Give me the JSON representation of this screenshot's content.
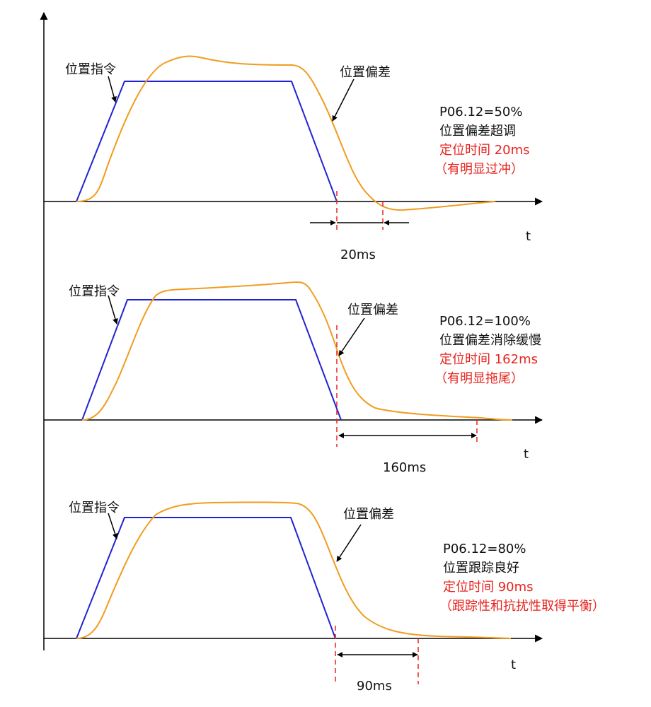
{
  "colors": {
    "command": "#2323d2",
    "error": "#f29c1f",
    "axis": "#000000",
    "marker": "#e8231e",
    "text": "#111111",
    "highlight_text": "#e8231e"
  },
  "panels": [
    {
      "command_label": "位置指令",
      "error_label": "位置偏差",
      "param": "P06.12=50%",
      "desc": "位置偏差超调",
      "settle": "定位时间 20ms",
      "note": "（有明显过冲）",
      "interval": "20ms",
      "axis_label": "t"
    },
    {
      "command_label": "位置指令",
      "error_label": "位置偏差",
      "param": "P06.12=100%",
      "desc": "位置偏差消除缓慢",
      "settle": "定位时间 162ms",
      "note": "（有明显拖尾）",
      "interval": "160ms",
      "axis_label": "t"
    },
    {
      "command_label": "位置指令",
      "error_label": "位置偏差",
      "param": "P06.12=80%",
      "desc": "位置跟踪良好",
      "settle": "定位时间 90ms",
      "note": "（跟踪性和抗扰性取得平衡）",
      "interval": "90ms",
      "axis_label": "t"
    }
  ]
}
